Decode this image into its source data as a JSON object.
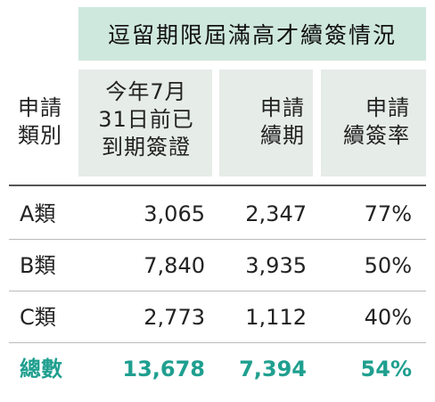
{
  "table": {
    "title": "逗留期限屆滿高才續簽情況",
    "headers": {
      "category": "申請\n類別",
      "expired_visas": "今年7月\n31日前已\n到期簽證",
      "renewal_applications": "申請\n續期",
      "renewal_rate": "申請\n續簽率"
    },
    "rows": [
      {
        "category": "A類",
        "expired_visas": "3,065",
        "renewal_applications": "2,347",
        "renewal_rate": "77%"
      },
      {
        "category": "B類",
        "expired_visas": "7,840",
        "renewal_applications": "3,935",
        "renewal_rate": "50%"
      },
      {
        "category": "C類",
        "expired_visas": "2,773",
        "renewal_applications": "1,112",
        "renewal_rate": "40%"
      }
    ],
    "total": {
      "category": "總數",
      "expired_visas": "13,678",
      "renewal_applications": "7,394",
      "renewal_rate": "54%"
    },
    "colors": {
      "title_bg": "#cfe8de",
      "header_bg": "#e6ece8",
      "total_text": "#1f9f8f"
    }
  }
}
